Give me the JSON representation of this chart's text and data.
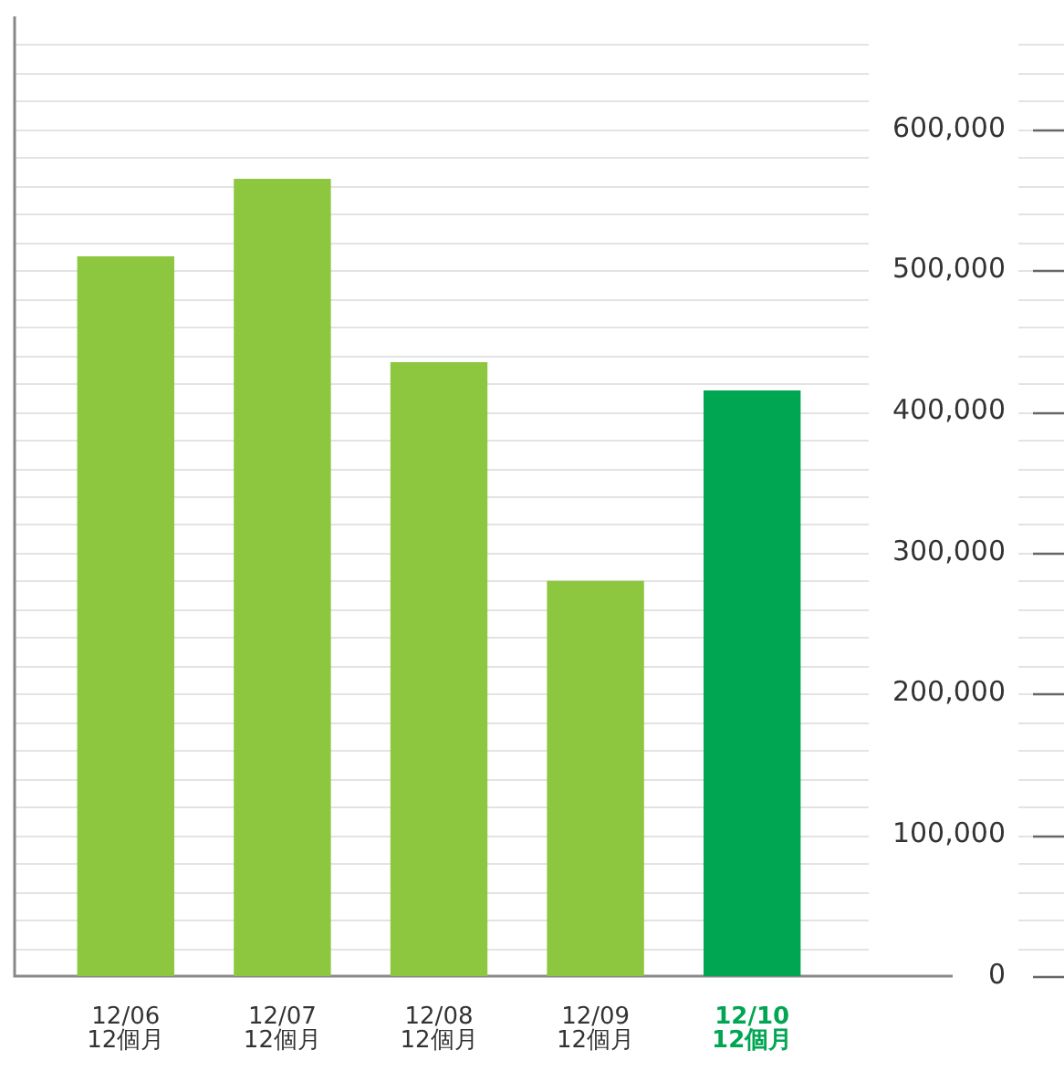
{
  "chart_data": {
    "type": "bar",
    "categories": [
      "12/06\n12個月",
      "12/07\n12個月",
      "12/08\n12個月",
      "12/09\n12個月",
      "12/10\n12個月"
    ],
    "values": [
      510000,
      565000,
      435000,
      280000,
      415000
    ],
    "colors": [
      "#8dc63f",
      "#8dc63f",
      "#8dc63f",
      "#8dc63f",
      "#00a651"
    ],
    "ylim": [
      0,
      680000
    ],
    "yticks": [
      {
        "value": 0,
        "label": "0"
      },
      {
        "value": 20000,
        "label": null
      },
      {
        "value": 40000,
        "label": null
      },
      {
        "value": 60000,
        "label": null
      },
      {
        "value": 80000,
        "label": null
      },
      {
        "value": 100000,
        "label": "100,000"
      },
      {
        "value": 120000,
        "label": null
      },
      {
        "value": 140000,
        "label": null
      },
      {
        "value": 160000,
        "label": null
      },
      {
        "value": 180000,
        "label": null
      },
      {
        "value": 200000,
        "label": "200,000"
      },
      {
        "value": 220000,
        "label": null
      },
      {
        "value": 240000,
        "label": null
      },
      {
        "value": 260000,
        "label": null
      },
      {
        "value": 280000,
        "label": null
      },
      {
        "value": 300000,
        "label": "300,000"
      },
      {
        "value": 320000,
        "label": null
      },
      {
        "value": 340000,
        "label": null
      },
      {
        "value": 360000,
        "label": null
      },
      {
        "value": 380000,
        "label": null
      },
      {
        "value": 400000,
        "label": "400,000"
      },
      {
        "value": 420000,
        "label": null
      },
      {
        "value": 440000,
        "label": null
      },
      {
        "value": 460000,
        "label": null
      },
      {
        "value": 480000,
        "label": null
      },
      {
        "value": 500000,
        "label": "500,000"
      },
      {
        "value": 520000,
        "label": null
      },
      {
        "value": 540000,
        "label": null
      },
      {
        "value": 560000,
        "label": null
      },
      {
        "value": 580000,
        "label": null
      },
      {
        "value": 600000,
        "label": "600,000"
      },
      {
        "value": 620000,
        "label": null
      },
      {
        "value": 640000,
        "label": null
      },
      {
        "value": 660000,
        "label": null
      }
    ],
    "grid": "y"
  }
}
